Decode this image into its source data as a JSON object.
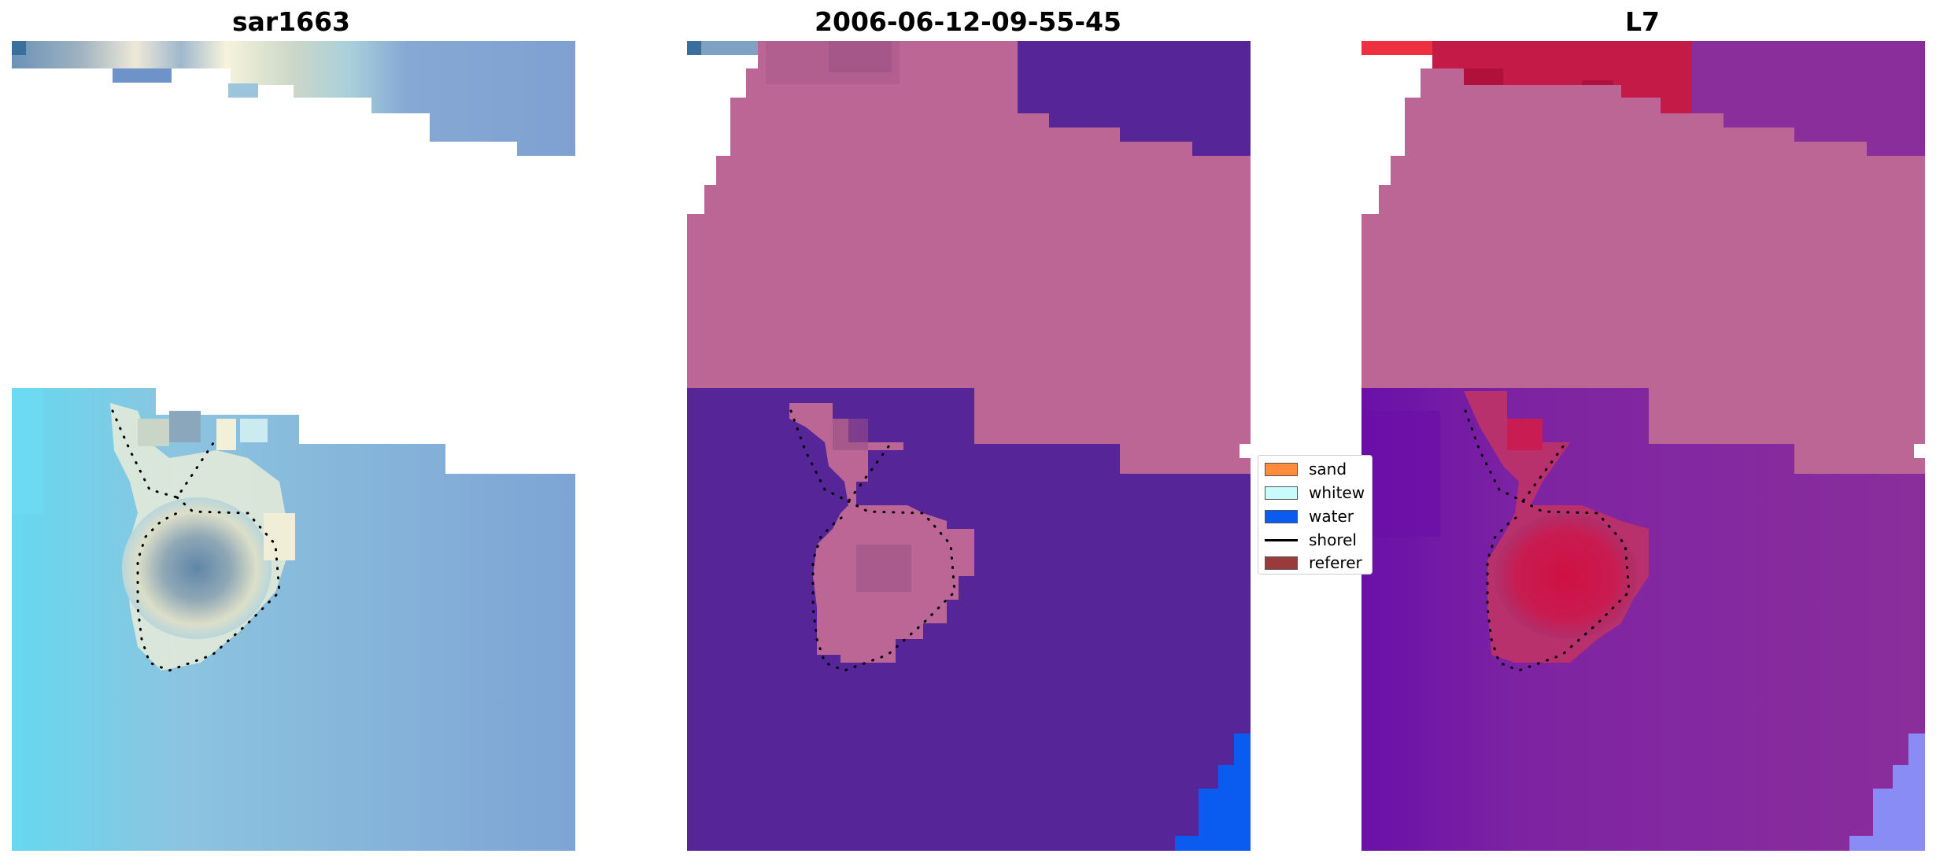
{
  "titles": {
    "left": "sar1663",
    "middle": "2006-06-12-09-55-45",
    "right": "L7"
  },
  "legend": {
    "items": [
      {
        "kind": "patch",
        "label": "sand",
        "color": "#ff8c3a"
      },
      {
        "kind": "patch",
        "label": "whitew",
        "color": "#c8fcfc"
      },
      {
        "kind": "patch",
        "label": "water",
        "color": "#0a5cf0"
      },
      {
        "kind": "line",
        "label": "shorel",
        "color": "#000000"
      },
      {
        "kind": "patch",
        "label": "referer",
        "color": "#9a3a3a"
      }
    ]
  },
  "colors": {
    "water_rgb": "#7aa4d6",
    "whitewater_rgb": "#f4f2dc",
    "class_sand_overlay": "#bb6695",
    "class_water_overlay": "#562699",
    "class_blue": "#0a5cf0",
    "index_high": "#d01040",
    "index_mid": "#8a2e9c",
    "index_low": "#6a10a8",
    "index_blue": "#8a8cf5"
  }
}
